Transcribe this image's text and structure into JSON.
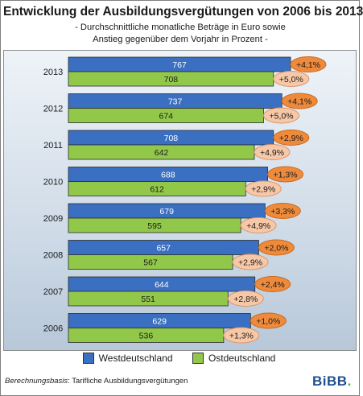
{
  "title": "Entwicklung der Ausbildungsvergütungen von 2006 bis 2013",
  "subtitle": [
    "- Durchschnittliche monatliche Beträge in Euro sowie",
    "Anstieg gegenüber dem Vorjahr in Prozent -"
  ],
  "legend": {
    "west": "Westdeutschland",
    "east": "Ostdeutschland"
  },
  "footer": {
    "label": "Berechnungsbasis",
    "text": ": Tarifliche Ausbildungsvergütungen"
  },
  "logo": {
    "text": "BiBB",
    "dot": "."
  },
  "colors": {
    "west": "#3b6fc1",
    "east": "#92c84a",
    "badge_dark": "#ee8a3c",
    "badge_light": "#f7c8a8"
  },
  "chart_data": {
    "type": "bar",
    "orientation": "horizontal",
    "categories": [
      "2013",
      "2012",
      "2011",
      "2010",
      "2009",
      "2008",
      "2007",
      "2006"
    ],
    "series": [
      {
        "name": "Westdeutschland",
        "values": [
          767,
          737,
          708,
          688,
          679,
          657,
          644,
          629
        ],
        "change": [
          "+4,1%",
          "+4,1%",
          "+2,9%",
          "+1,3%",
          "+3,3%",
          "+2,0%",
          "+2,4%",
          "+1,0%"
        ]
      },
      {
        "name": "Ostdeutschland",
        "values": [
          708,
          674,
          642,
          612,
          595,
          567,
          551,
          536
        ],
        "change": [
          "+5,0%",
          "+5,0%",
          "+4,9%",
          "+2,9%",
          "+4,9%",
          "+2,9%",
          "+2,8%",
          "+1,3%"
        ]
      }
    ],
    "xlim": [
      0,
      767
    ]
  }
}
